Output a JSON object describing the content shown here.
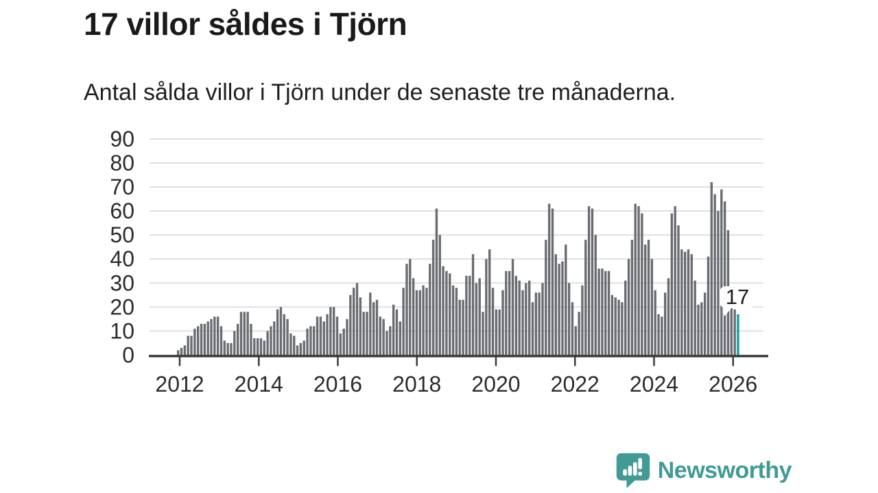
{
  "header": {
    "title": "17 villor såldes i Tjörn",
    "subtitle": "Antal sålda villor i Tjörn under de senaste tre månaderna."
  },
  "footer": {
    "logo_text": "Newsworthy"
  },
  "colors": {
    "bar": "#696c71",
    "highlight_bar": "#0ea2aa",
    "grid": "#d9d9dc",
    "axis": "#3a3a3c",
    "text": "#2b2b2b",
    "brand": "#419a93",
    "annotation_bg": "#ffffff",
    "annotation_text": "#1a1a1a"
  },
  "chart_data": {
    "type": "bar",
    "title": "17 villor såldes i Tjörn",
    "subtitle": "Antal sålda villor i Tjörn under de senaste tre månaderna.",
    "xlabel": "",
    "ylabel": "",
    "ylim": [
      0,
      90
    ],
    "grid": "horizontal",
    "legend": "none",
    "y_ticks": [
      0,
      10,
      20,
      30,
      40,
      50,
      60,
      70,
      80,
      90
    ],
    "x_tick_labels": [
      "2012",
      "2014",
      "2016",
      "2018",
      "2020",
      "2022",
      "2024",
      "2026"
    ],
    "x_unit": "month",
    "x_range_note": "monthly bars from late 2011 to early 2026",
    "annotation": {
      "text": "17",
      "applies_to": "last_bar"
    },
    "highlight_last_bar": true,
    "values": [
      2,
      3,
      4,
      8,
      8,
      11,
      12,
      13,
      13,
      14,
      15,
      16,
      16,
      12,
      6,
      5,
      5,
      10,
      13,
      18,
      18,
      18,
      13,
      7,
      7,
      7,
      6,
      10,
      12,
      14,
      19,
      20,
      17,
      15,
      9,
      8,
      4,
      5,
      6,
      11,
      12,
      12,
      16,
      16,
      14,
      17,
      20,
      20,
      16,
      9,
      11,
      15,
      25,
      28,
      30,
      24,
      18,
      18,
      26,
      22,
      23,
      16,
      15,
      10,
      12,
      21,
      19,
      14,
      28,
      38,
      40,
      32,
      27,
      27,
      29,
      28,
      38,
      48,
      61,
      50,
      37,
      35,
      34,
      29,
      28,
      23,
      23,
      33,
      33,
      42,
      30,
      32,
      18,
      40,
      44,
      28,
      19,
      19,
      27,
      35,
      35,
      40,
      33,
      31,
      27,
      30,
      31,
      22,
      26,
      26,
      30,
      48,
      63,
      61,
      42,
      38,
      39,
      46,
      30,
      22,
      12,
      18,
      29,
      48,
      62,
      61,
      50,
      36,
      36,
      35,
      35,
      25,
      24,
      23,
      22,
      31,
      40,
      48,
      63,
      62,
      59,
      46,
      48,
      40,
      27,
      17,
      16,
      26,
      32,
      59,
      62,
      54,
      44,
      43,
      44,
      42,
      31,
      21,
      22,
      26,
      41,
      72,
      67,
      60,
      69,
      64,
      52,
      20,
      19,
      17
    ]
  }
}
